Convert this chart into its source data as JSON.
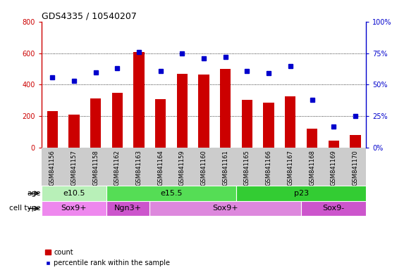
{
  "title": "GDS4335 / 10540207",
  "samples": [
    "GSM841156",
    "GSM841157",
    "GSM841158",
    "GSM841162",
    "GSM841163",
    "GSM841164",
    "GSM841159",
    "GSM841160",
    "GSM841161",
    "GSM841165",
    "GSM841166",
    "GSM841167",
    "GSM841168",
    "GSM841169",
    "GSM841170"
  ],
  "counts": [
    235,
    210,
    315,
    350,
    605,
    310,
    470,
    465,
    500,
    305,
    285,
    325,
    120,
    45,
    80
  ],
  "percentiles": [
    56,
    53,
    60,
    63,
    76,
    61,
    75,
    71,
    72,
    61,
    59,
    65,
    38,
    17,
    25
  ],
  "age_groups": [
    {
      "label": "e10.5",
      "start": 0,
      "end": 3,
      "color": "#b8f0b8"
    },
    {
      "label": "e15.5",
      "start": 3,
      "end": 9,
      "color": "#55dd55"
    },
    {
      "label": "p23",
      "start": 9,
      "end": 15,
      "color": "#33cc33"
    }
  ],
  "cell_type_groups": [
    {
      "label": "Sox9+",
      "start": 0,
      "end": 3,
      "color": "#ee88ee"
    },
    {
      "label": "Ngn3+",
      "start": 3,
      "end": 5,
      "color": "#cc55cc"
    },
    {
      "label": "Sox9+",
      "start": 5,
      "end": 12,
      "color": "#dd88dd"
    },
    {
      "label": "Sox9-",
      "start": 12,
      "end": 15,
      "color": "#cc55cc"
    }
  ],
  "ylim_left": [
    0,
    800
  ],
  "ylim_right": [
    0,
    100
  ],
  "yticks_left": [
    0,
    200,
    400,
    600,
    800
  ],
  "yticks_right": [
    0,
    25,
    50,
    75,
    100
  ],
  "ytick_right_labels": [
    "0%",
    "25%",
    "50%",
    "75%",
    "100%"
  ],
  "bar_color": "#cc0000",
  "dot_color": "#0000cc",
  "grid_color": "#000000",
  "bg_color": "#ffffff",
  "tick_area_color": "#cccccc",
  "left_axis_color": "#cc0000",
  "right_axis_color": "#0000cc",
  "label_fontsize": 7,
  "tick_fontsize": 7,
  "sample_fontsize": 6
}
